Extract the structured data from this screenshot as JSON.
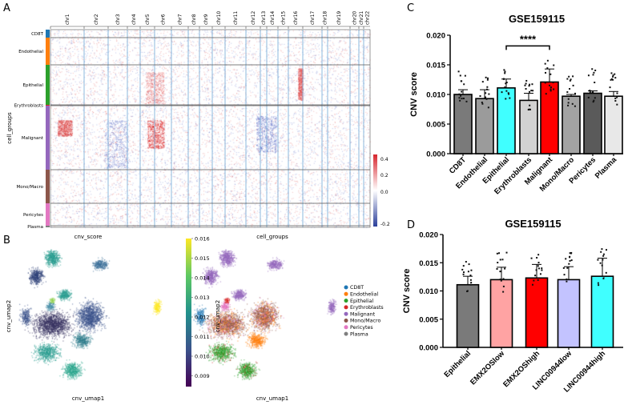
{
  "panels": {
    "a": "A",
    "b": "B",
    "c": "C",
    "d": "D"
  },
  "heatmap": {
    "chromosomes": [
      "chr1",
      "chr2",
      "chr3",
      "chr4",
      "chr5",
      "chr6",
      "chr7",
      "chr8",
      "chr9",
      "chr10",
      "chr11",
      "chr12",
      "chr13",
      "chr14",
      "chr15",
      "chr16",
      "chr17",
      "chr18",
      "chr19",
      "chr20",
      "chr21",
      "chr22"
    ],
    "ylabel": "cell_groups",
    "groups": [
      {
        "name": "CD8T",
        "color": "#1f77b4"
      },
      {
        "name": "Endothelial",
        "color": "#ff7f0e"
      },
      {
        "name": "Epithelial",
        "color": "#2ca02c"
      },
      {
        "name": "Erythroblasts",
        "color": "#d62728"
      },
      {
        "name": "Malignant",
        "color": "#9467bd"
      },
      {
        "name": "Mono/Macro",
        "color": "#8c564b"
      },
      {
        "name": "Pericytes",
        "color": "#e377c2"
      },
      {
        "name": "Plasma",
        "color": "#7f7f7f"
      }
    ],
    "colorbar": {
      "ticks": [
        "0.4",
        "0.2",
        "0.0",
        "-0.2"
      ],
      "min_color": "#2b3f9a",
      "mid_color": "#ffffff",
      "max_color": "#d7262e"
    }
  },
  "umap": {
    "left_title": "cnv_score",
    "right_title": "cell_groups",
    "xlabel": "cnv_umap1",
    "ylabel": "cnv_umap2",
    "colorbar_ticks": [
      "0.016",
      "0.015",
      "0.014",
      "0.013",
      "0.012",
      "0.011",
      "0.010",
      "0.009"
    ],
    "legend": [
      "CD8T",
      "Endothelial",
      "Epithelial",
      "Erythroblasts",
      "Malignant",
      "Mono/Macro",
      "Pericytes",
      "Plasma"
    ]
  },
  "chart_data": [
    {
      "type": "bar",
      "title": "GSE159115",
      "ylabel": "CNV score",
      "ylim": [
        0,
        0.02
      ],
      "yticks": [
        "0.000",
        "0.005",
        "0.010",
        "0.015",
        "0.020"
      ],
      "categories": [
        "CD8T",
        "Endothelial",
        "Epithelial",
        "Erythroblasts",
        "Malignant",
        "Mono/Macro",
        "Pericytes",
        "Plasma"
      ],
      "values": [
        0.01,
        0.0093,
        0.0111,
        0.009,
        0.0121,
        0.0097,
        0.0102,
        0.0097
      ],
      "error_upper": [
        0.0108,
        0.0108,
        0.0126,
        0.0102,
        0.0143,
        0.01,
        0.0106,
        0.0105
      ],
      "colors": [
        "#7a7a7a",
        "#9b9b9b",
        "#40ffff",
        "#d2d2d2",
        "#ff0000",
        "#a3a3a3",
        "#5a5a5a",
        "#e8e8e8"
      ],
      "significance": {
        "from": "Epithelial",
        "to": "Malignant",
        "label": "****"
      }
    },
    {
      "type": "bar",
      "title": "GSE159115",
      "ylabel": "CNV score",
      "ylim": [
        0,
        0.02
      ],
      "yticks": [
        "0.000",
        "0.005",
        "0.010",
        "0.015",
        "0.020"
      ],
      "categories": [
        "Epithelial",
        "EMX2OSlow",
        "EMX2OShigh",
        "LINC00944low",
        "LINC00944high"
      ],
      "values": [
        0.0111,
        0.012,
        0.0123,
        0.012,
        0.0126
      ],
      "error_upper": [
        0.0126,
        0.0142,
        0.0147,
        0.0143,
        0.0158
      ],
      "colors": [
        "#7a7a7a",
        "#ffa3a3",
        "#ff0000",
        "#c3c3ff",
        "#40ffff"
      ]
    }
  ]
}
